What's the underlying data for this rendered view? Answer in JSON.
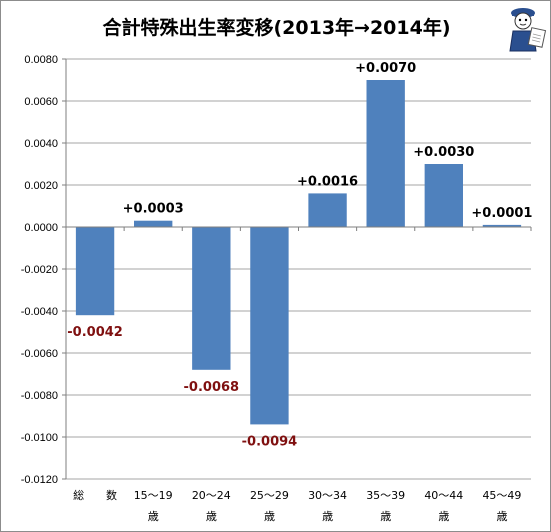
{
  "chart_data": {
    "type": "bar",
    "title": "合計特殊出生率変移(2013年→2014年)",
    "xlabel": "",
    "ylabel": "",
    "categories": [
      [
        "総　　数"
      ],
      [
        "15〜19",
        "歳"
      ],
      [
        "20〜24",
        "歳"
      ],
      [
        "25〜29",
        "歳"
      ],
      [
        "30〜34",
        "歳"
      ],
      [
        "35〜39",
        "歳"
      ],
      [
        "40〜44",
        "歳"
      ],
      [
        "45〜49",
        "歳"
      ]
    ],
    "values": [
      -0.0042,
      0.0003,
      -0.0068,
      -0.0094,
      0.0016,
      0.007,
      0.003,
      0.0001
    ],
    "data_labels": [
      "-0.0042",
      "+0.0003",
      "-0.0068",
      "-0.0094",
      "+0.0016",
      "+0.0070",
      "+0.0030",
      "+0.0001"
    ],
    "ylim": [
      -0.012,
      0.008
    ],
    "yticks": [
      0.008,
      0.006,
      0.004,
      0.002,
      0.0,
      -0.002,
      -0.004,
      -0.006,
      -0.008,
      -0.01,
      -0.012
    ],
    "ytick_labels": [
      "0.0080",
      "0.0060",
      "0.0040",
      "0.0020",
      "0.0000",
      "-0.0020",
      "-0.0040",
      "-0.0060",
      "-0.0080",
      "-0.0100",
      "-0.0120"
    ],
    "grid": true,
    "legend": false,
    "colors": {
      "bar": "#4f81bd",
      "positive_label": "#000000",
      "negative_label": "#7f1010",
      "grid": "#a6a6a6",
      "axis": "#7f7f7f"
    }
  },
  "mascot": {
    "icon": "mascot-reader-icon"
  }
}
